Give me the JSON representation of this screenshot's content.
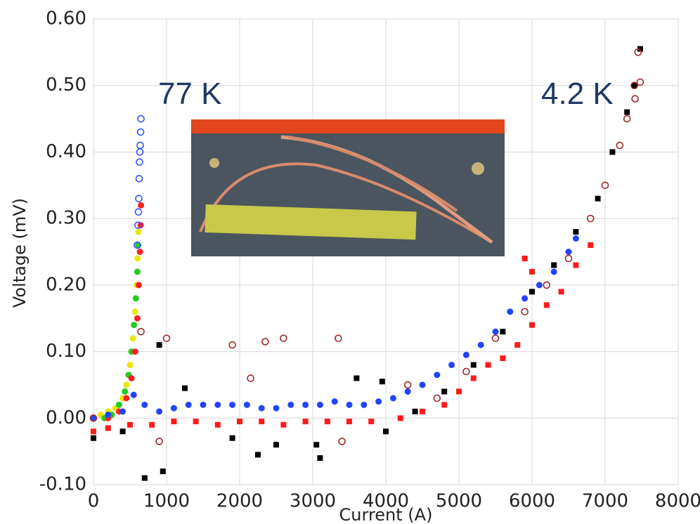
{
  "chart_data": {
    "type": "scatter",
    "x_label": "Current (A)",
    "y_label": "Voltage (mV)",
    "annotations": [
      "77 K",
      "4.2 K"
    ],
    "xlim": [
      0,
      8000
    ],
    "xticks": [
      0,
      1000,
      2000,
      3000,
      4000,
      5000,
      6000,
      7000,
      8000
    ],
    "ylim": [
      -0.1,
      0.6
    ],
    "yticks": [
      {
        "value": -0.1,
        "label": "-0.10"
      },
      {
        "value": 0,
        "label": "0.00"
      },
      {
        "value": 0.1,
        "label": "0.10"
      },
      {
        "value": 0.2,
        "label": "0.20"
      },
      {
        "value": 0.3,
        "label": "0.30"
      },
      {
        "value": 0.4,
        "label": "0.40"
      },
      {
        "value": 0.5,
        "label": "0.50"
      },
      {
        "value": 0.6,
        "label": "0.60"
      }
    ],
    "grid": true,
    "series": [
      {
        "color": "#e8e800",
        "marker": "circle",
        "x": [
          100,
          200,
          300,
          400,
          450,
          500,
          540,
          570,
          590,
          605,
          615
        ],
        "y": [
          0.005,
          0.01,
          0.015,
          0.03,
          0.05,
          0.08,
          0.12,
          0.16,
          0.2,
          0.24,
          0.28
        ]
      },
      {
        "color": "#22cc22",
        "marker": "circle",
        "x": [
          150,
          250,
          350,
          430,
          480,
          520,
          555,
          580,
          600,
          612
        ],
        "y": [
          0.0,
          0.005,
          0.02,
          0.04,
          0.065,
          0.1,
          0.14,
          0.18,
          0.22,
          0.26
        ]
      },
      {
        "color": "#ff2020",
        "marker": "circle",
        "x": [
          200,
          350,
          450,
          520,
          570,
          600,
          620,
          635,
          645,
          650
        ],
        "y": [
          0.0,
          0.01,
          0.03,
          0.06,
          0.1,
          0.15,
          0.2,
          0.25,
          0.29,
          0.32
        ]
      },
      {
        "color": "#3355ff",
        "marker": "open-circle",
        "x": [
          600,
          610,
          615,
          620,
          625,
          630,
          635,
          640,
          645,
          650
        ],
        "y": [
          0.26,
          0.29,
          0.31,
          0.33,
          0.36,
          0.385,
          0.4,
          0.41,
          0.43,
          0.45
        ]
      },
      {
        "color": "#2244ff",
        "marker": "circle",
        "x": [
          0,
          200,
          400,
          550,
          700,
          900,
          1100,
          1300,
          1500,
          1700,
          1900,
          2100,
          2300,
          2500,
          2700,
          2900,
          3100,
          3300,
          3500,
          3700,
          3900,
          4100,
          4300,
          4500,
          4700,
          4900,
          5100,
          5300,
          5500,
          5700,
          5900,
          6100,
          6300,
          6500,
          6600
        ],
        "y": [
          0,
          0.005,
          0.01,
          0.035,
          0.02,
          0.01,
          0.015,
          0.02,
          0.02,
          0.02,
          0.02,
          0.02,
          0.015,
          0.015,
          0.02,
          0.02,
          0.02,
          0.025,
          0.02,
          0.02,
          0.025,
          0.03,
          0.04,
          0.05,
          0.065,
          0.08,
          0.095,
          0.11,
          0.13,
          0.16,
          0.18,
          0.2,
          0.22,
          0.25,
          0.27
        ]
      },
      {
        "color": "#ff1a1a",
        "marker": "square",
        "x": [
          0,
          200,
          500,
          800,
          1100,
          1400,
          1700,
          2000,
          2300,
          2600,
          2900,
          3200,
          3500,
          3800,
          4200,
          4500,
          4800,
          5000,
          5200,
          5400,
          5600,
          5800,
          6000,
          6200,
          6400,
          6600,
          6800,
          5900,
          6000
        ],
        "y": [
          -0.02,
          -0.015,
          -0.01,
          -0.01,
          -0.005,
          -0.005,
          -0.01,
          -0.005,
          -0.005,
          -0.01,
          -0.005,
          -0.005,
          -0.005,
          -0.005,
          0.0,
          0.01,
          0.02,
          0.04,
          0.06,
          0.08,
          0.09,
          0.11,
          0.14,
          0.17,
          0.19,
          0.23,
          0.26,
          0.24,
          0.22
        ]
      },
      {
        "color": "#000000",
        "marker": "square",
        "x": [
          0,
          400,
          700,
          950,
          900,
          1250,
          1900,
          2250,
          2500,
          3100,
          3050,
          3600,
          3950,
          4000,
          4400,
          4800,
          5200,
          5600,
          6000,
          6300,
          6600,
          6900,
          7100,
          7300,
          7400,
          7480
        ],
        "y": [
          -0.03,
          -0.02,
          -0.09,
          -0.08,
          0.11,
          0.045,
          -0.03,
          -0.055,
          -0.04,
          -0.06,
          -0.04,
          0.06,
          0.055,
          -0.02,
          0.01,
          0.04,
          0.08,
          0.13,
          0.19,
          0.23,
          0.28,
          0.33,
          0.4,
          0.46,
          0.5,
          0.555
        ]
      },
      {
        "color": "#a02828",
        "marker": "open-circle",
        "x": [
          0,
          650,
          1000,
          1900,
          2150,
          2350,
          2600,
          3350,
          3400,
          900,
          4300,
          4700,
          5100,
          5500,
          5900,
          6200,
          6500,
          6800,
          7000,
          7200,
          7300,
          7400,
          7450,
          7480,
          7410
        ],
        "y": [
          0,
          0.13,
          0.12,
          0.11,
          0.06,
          0.115,
          0.12,
          0.12,
          -0.035,
          -0.035,
          0.05,
          0.03,
          0.07,
          0.12,
          0.16,
          0.2,
          0.24,
          0.3,
          0.35,
          0.41,
          0.45,
          0.5,
          0.55,
          0.505,
          0.48
        ]
      }
    ]
  }
}
